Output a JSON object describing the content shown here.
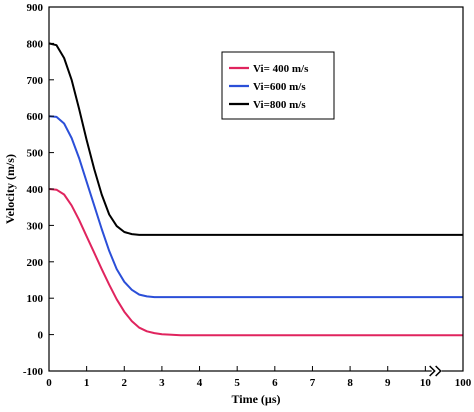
{
  "chart_data": {
    "type": "line",
    "xlabel": "Time (µs)",
    "ylabel": "Velocity (m/s)",
    "xlim": [
      0,
      11
    ],
    "ylim": [
      -100,
      900
    ],
    "x_ticks": [
      "0",
      "1",
      "2",
      "3",
      "4",
      "5",
      "6",
      "7",
      "8",
      "9",
      "10",
      "100"
    ],
    "y_ticks": [
      "-100",
      "0",
      "100",
      "200",
      "300",
      "400",
      "500",
      "600",
      "700",
      "800",
      "900"
    ],
    "axis_break_near": 10.3,
    "grid": false,
    "legend_position": "top-right",
    "series": [
      {
        "name": "Vi= 400 m/s",
        "color": "#e0245e",
        "x": [
          0,
          0.2,
          0.4,
          0.6,
          0.8,
          1.0,
          1.2,
          1.4,
          1.6,
          1.8,
          2.0,
          2.2,
          2.4,
          2.6,
          2.8,
          3.0,
          3.2,
          3.5,
          4.0,
          11
        ],
        "y": [
          400,
          398,
          385,
          355,
          315,
          270,
          225,
          180,
          137,
          97,
          63,
          37,
          19,
          9,
          4,
          1,
          0,
          -2,
          -2,
          -2
        ]
      },
      {
        "name": "Vi=600 m/s",
        "color": "#2b4fd8",
        "x": [
          0,
          0.2,
          0.4,
          0.6,
          0.8,
          1.0,
          1.2,
          1.4,
          1.6,
          1.8,
          2.0,
          2.2,
          2.4,
          2.6,
          2.8,
          3.0,
          11
        ],
        "y": [
          600,
          598,
          580,
          540,
          485,
          420,
          355,
          290,
          230,
          180,
          145,
          123,
          110,
          105,
          103,
          103,
          103
        ]
      },
      {
        "name": "Vi=800 m/s",
        "color": "#000000",
        "x": [
          0,
          0.2,
          0.4,
          0.6,
          0.8,
          1.0,
          1.2,
          1.4,
          1.6,
          1.8,
          2.0,
          2.2,
          2.4,
          2.6,
          11
        ],
        "y": [
          800,
          795,
          760,
          700,
          620,
          535,
          455,
          385,
          330,
          298,
          282,
          276,
          274,
          274,
          274
        ]
      }
    ]
  }
}
